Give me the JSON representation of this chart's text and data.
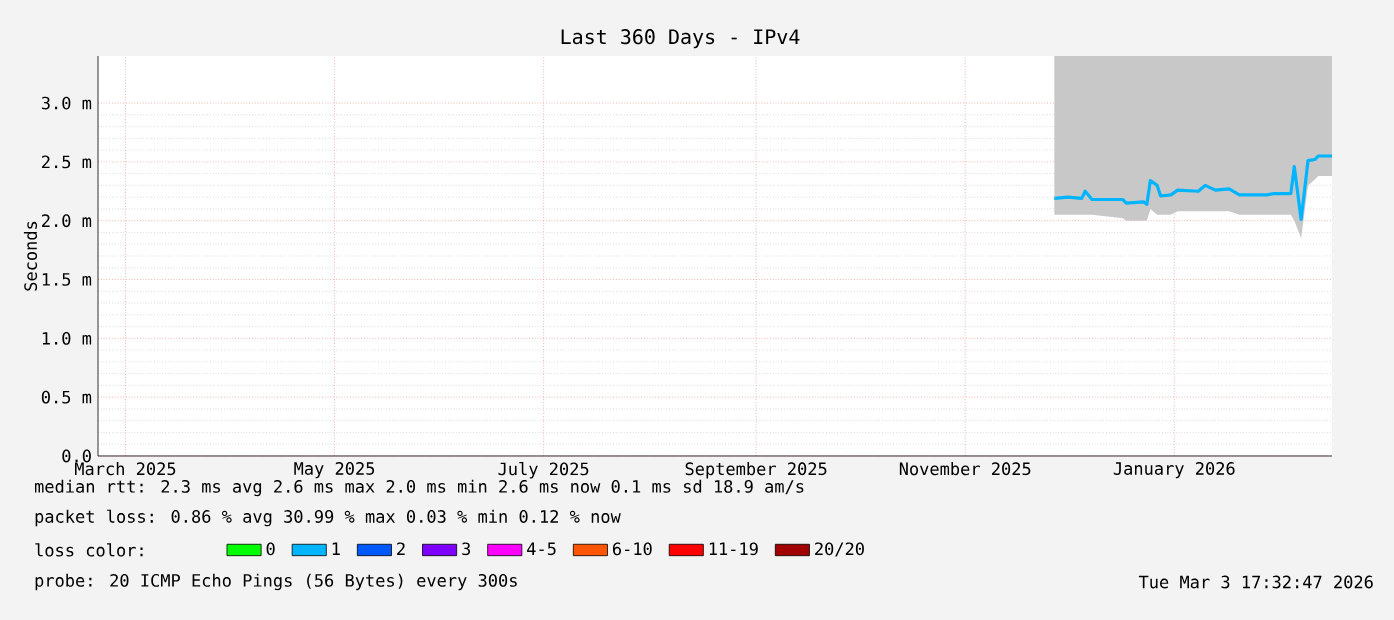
{
  "chart_data": {
    "type": "line",
    "title": "Last 360 Days - IPv4",
    "ylabel": "Seconds",
    "xlim": [
      "2025-02-21",
      "2026-02-16"
    ],
    "ylim": [
      0,
      3.4
    ],
    "xticks": [
      {
        "value": "2025-03-01",
        "label": "March 2025"
      },
      {
        "value": "2025-05-01",
        "label": "May 2025"
      },
      {
        "value": "2025-07-01",
        "label": "July 2025"
      },
      {
        "value": "2025-09-01",
        "label": "September 2025"
      },
      {
        "value": "2025-11-01",
        "label": "November 2025"
      },
      {
        "value": "2026-01-01",
        "label": "January 2026"
      }
    ],
    "yticks": [
      {
        "value": 0,
        "label": "0.0"
      },
      {
        "value": 0.5,
        "label": "0.5 m"
      },
      {
        "value": 1.0,
        "label": "1.0 m"
      },
      {
        "value": 1.5,
        "label": "1.5 m"
      },
      {
        "value": 2.0,
        "label": "2.0 m"
      },
      {
        "value": 2.5,
        "label": "2.5 m"
      },
      {
        "value": 3.0,
        "label": "3.0 m"
      }
    ],
    "grid": true,
    "legend": "bottom",
    "legend_title": "loss color:",
    "x": [
      "2025-11-27",
      "2025-12-01",
      "2025-12-05",
      "2025-12-06",
      "2025-12-08",
      "2025-12-17",
      "2025-12-18",
      "2025-12-23",
      "2025-12-24",
      "2025-12-25",
      "2025-12-27",
      "2025-12-28",
      "2025-12-31",
      "2026-01-02",
      "2026-01-08",
      "2026-01-10",
      "2026-01-13",
      "2026-01-17",
      "2026-01-20",
      "2026-01-28",
      "2026-01-30",
      "2026-02-04",
      "2026-02-05",
      "2026-02-07",
      "2026-02-09",
      "2026-02-11",
      "2026-02-12",
      "2026-02-16"
    ],
    "series": [
      {
        "name": "0",
        "color": "#00ff00",
        "values": [
          null,
          null,
          null,
          null,
          null,
          null,
          null,
          null,
          null,
          null,
          null,
          null,
          null,
          null,
          null,
          null,
          null,
          null,
          null,
          null,
          null,
          null,
          null,
          null,
          null,
          null,
          null,
          null
        ]
      },
      {
        "name": "1",
        "color": "#00b4ff",
        "values": [
          2.19,
          2.2,
          2.19,
          2.25,
          2.18,
          2.18,
          2.15,
          2.16,
          2.14,
          2.34,
          2.3,
          2.21,
          2.22,
          2.26,
          2.25,
          2.3,
          2.26,
          2.27,
          2.22,
          2.22,
          2.23,
          2.23,
          2.46,
          2.01,
          2.51,
          2.52,
          2.55,
          2.55
        ],
        "lower": [
          2.05,
          2.05,
          2.05,
          2.05,
          2.05,
          2.02,
          2.0,
          2.0,
          2.0,
          2.1,
          2.05,
          2.05,
          2.05,
          2.08,
          2.08,
          2.08,
          2.08,
          2.08,
          2.05,
          2.05,
          2.05,
          2.05,
          2.0,
          1.85,
          2.3,
          2.35,
          2.38,
          2.38
        ],
        "upper": [
          3.4,
          3.4,
          3.4,
          3.4,
          3.4,
          3.4,
          3.4,
          3.4,
          3.4,
          3.4,
          3.4,
          3.4,
          3.4,
          3.4,
          3.4,
          3.4,
          3.4,
          3.4,
          3.4,
          3.4,
          3.4,
          3.4,
          3.4,
          3.4,
          3.4,
          3.4,
          3.4,
          3.4
        ]
      },
      {
        "name": "2",
        "color": "#0059ff",
        "values": [
          null,
          null,
          null,
          null,
          null,
          null,
          null,
          null,
          null,
          null,
          null,
          null,
          null,
          null,
          null,
          null,
          null,
          null,
          null,
          null,
          null,
          null,
          null,
          null,
          null,
          null,
          null,
          null
        ]
      },
      {
        "name": "3",
        "color": "#7e00ff",
        "values": [
          null,
          null,
          null,
          null,
          null,
          null,
          null,
          null,
          null,
          null,
          null,
          null,
          null,
          null,
          null,
          null,
          null,
          null,
          null,
          null,
          null,
          null,
          null,
          null,
          null,
          null,
          null,
          null
        ]
      },
      {
        "name": "4-5",
        "color": "#ff00ff",
        "values": [
          null,
          null,
          null,
          null,
          null,
          null,
          null,
          null,
          null,
          null,
          null,
          null,
          null,
          null,
          null,
          null,
          null,
          null,
          null,
          null,
          null,
          null,
          null,
          null,
          null,
          null,
          null,
          null
        ]
      },
      {
        "name": "6-10",
        "color": "#ff5500",
        "values": [
          null,
          null,
          null,
          null,
          null,
          null,
          null,
          null,
          null,
          null,
          null,
          null,
          null,
          null,
          null,
          null,
          null,
          null,
          null,
          null,
          null,
          null,
          null,
          null,
          null,
          null,
          null,
          null
        ]
      },
      {
        "name": "11-19",
        "color": "#ff0000",
        "values": [
          null,
          null,
          null,
          null,
          null,
          null,
          null,
          null,
          null,
          null,
          null,
          null,
          null,
          null,
          null,
          null,
          null,
          null,
          null,
          null,
          null,
          null,
          null,
          null,
          null,
          null,
          null,
          null
        ]
      },
      {
        "name": "20/20",
        "color": "#a10000",
        "values": [
          null,
          null,
          null,
          null,
          null,
          null,
          null,
          null,
          null,
          null,
          null,
          null,
          null,
          null,
          null,
          null,
          null,
          null,
          null,
          null,
          null,
          null,
          null,
          null,
          null,
          null,
          null,
          null
        ]
      }
    ],
    "annotations": [
      "median rtt: 2.3 ms avg 2.6 ms max 2.0 ms min 2.6 ms now 0.1 ms sd 18.9 am/s",
      "packet loss: 0.86 % avg 30.99 % max 0.03 % min 0.12 % now",
      "probe: 20 ICMP Echo Pings (56 Bytes) every 300s",
      "Tue Mar 3 17:32:47 2026"
    ]
  }
}
